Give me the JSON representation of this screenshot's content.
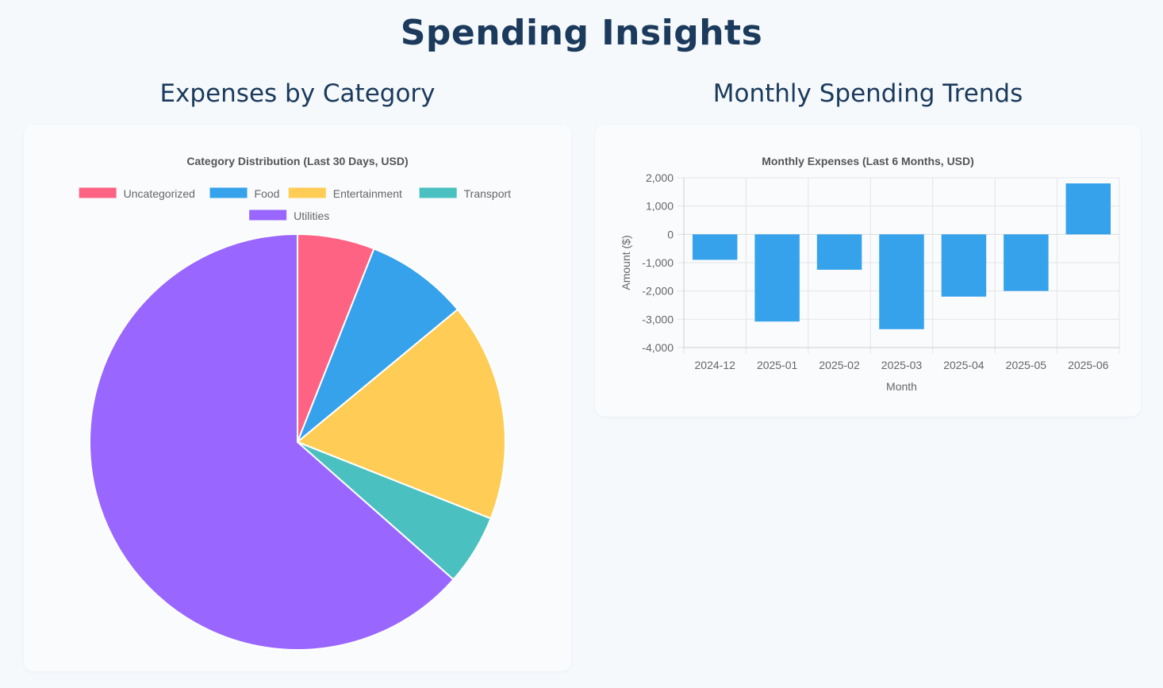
{
  "page": {
    "title": "Spending Insights"
  },
  "sections": {
    "left_title": "Expenses by Category",
    "right_title": "Monthly Spending Trends"
  },
  "chart_data": [
    {
      "type": "pie",
      "title": "Category Distribution (Last 30 Days, USD)",
      "categories": [
        "Uncategorized",
        "Food",
        "Entertainment",
        "Transport",
        "Utilities"
      ],
      "values": [
        6,
        8,
        17,
        5.5,
        63.5
      ],
      "colors": [
        "#ff6384",
        "#36a2eb",
        "#ffcd56",
        "#4bc0c0",
        "#9966ff"
      ],
      "legend": "top"
    },
    {
      "type": "bar",
      "title": "Monthly Expenses (Last 6 Months, USD)",
      "categories": [
        "2024-12",
        "2025-01",
        "2025-02",
        "2025-03",
        "2025-04",
        "2025-05",
        "2025-06"
      ],
      "values": [
        -900,
        -3080,
        -1250,
        -3350,
        -2200,
        -2000,
        1800
      ],
      "color": "#36a2eb",
      "xlabel": "Month",
      "ylabel": "Amount ($)",
      "ylim": [
        -4000,
        2000
      ],
      "yticks": [
        "2,000",
        "1,000",
        "0",
        "-1,000",
        "-2,000",
        "-3,000",
        "-4,000"
      ],
      "grid": true,
      "legend": "none"
    }
  ]
}
